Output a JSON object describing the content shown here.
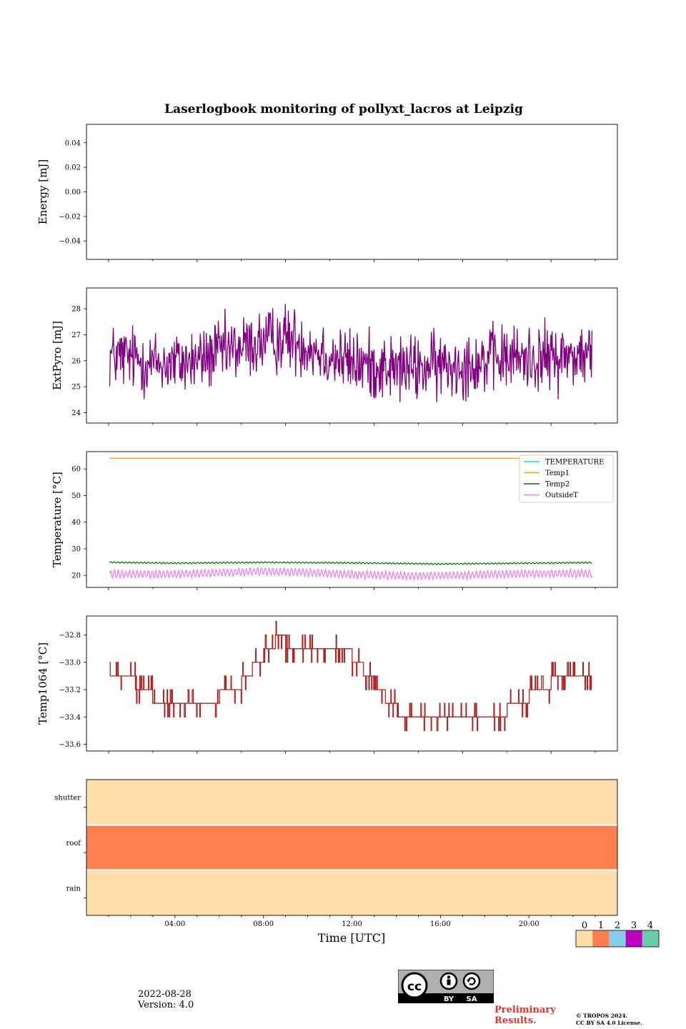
{
  "figure": {
    "title": "Laserlogbook monitoring of pollyxt_lacros at Leipzig",
    "xlabel": "Time [UTC]",
    "xticks": [
      "04:00",
      "08:00",
      "12:00",
      "16:00",
      "20:00"
    ]
  },
  "footer": {
    "date": "2022-08-28",
    "version": "Version: 4.0",
    "preliminary": [
      "Preliminary",
      "Results."
    ],
    "copyright": [
      "© TROPOS 2024.",
      "CC BY SA 4.0 License."
    ],
    "license_badge": {
      "icon": "cc-by-sa-icon",
      "labels": [
        "BY",
        "SA"
      ]
    }
  },
  "colors": {
    "energy": "#800080",
    "extpyro": "#800080",
    "TEMPERATURE": "#00e5ee",
    "Temp1": "#ffa500",
    "Temp2": "#008000",
    "OutsideT": "#ee82ee",
    "temp1064": "#b22222",
    "status_0": "#ffdeaa",
    "status_1": "#ff7f50",
    "status_2": "#87ceeb",
    "status_3": "#c000c0",
    "status_4": "#66cdaa"
  },
  "chart_data": [
    {
      "type": "line",
      "ylabel": "Energy [mJ]",
      "ylim": [
        -0.055,
        0.055
      ],
      "yticks": [
        "0.04",
        "0.02",
        "0.00",
        "−0.02",
        "−0.04"
      ],
      "ytick_values": [
        0.04,
        0.02,
        0.0,
        -0.02,
        -0.04
      ],
      "xlim_hours": [
        0,
        24
      ],
      "series": []
    },
    {
      "type": "line",
      "ylabel": "ExtPyro [mJ]",
      "ylim": [
        23.6,
        28.8
      ],
      "yticks": [
        "24",
        "25",
        "26",
        "27",
        "28"
      ],
      "ytick_values": [
        24,
        25,
        26,
        27,
        28
      ],
      "xlim_hours": [
        0,
        24
      ],
      "noise": {
        "start_hour": 1.05,
        "end_hour": 22.85,
        "points": 800
      },
      "series": [
        {
          "x_hours": [
            1,
            2,
            3,
            4,
            5,
            6,
            7,
            8,
            9,
            10,
            11,
            12,
            13,
            14,
            15,
            16,
            17,
            18,
            19,
            20,
            21,
            22,
            23
          ],
          "y_center": [
            26.2,
            26.1,
            25.9,
            25.9,
            26.0,
            26.3,
            26.5,
            26.7,
            26.9,
            26.6,
            26.2,
            25.9,
            25.8,
            25.7,
            25.7,
            25.8,
            25.9,
            26.0,
            26.1,
            26.1,
            26.1,
            26.2,
            26.2
          ],
          "spread": 1.2
        }
      ]
    },
    {
      "type": "line",
      "ylabel": "Temperature [°C]",
      "ylim": [
        15.5,
        66.5
      ],
      "yticks": [
        "20",
        "30",
        "40",
        "50",
        "60"
      ],
      "ytick_values": [
        20,
        30,
        40,
        50,
        60
      ],
      "xlim_hours": [
        0,
        24
      ],
      "legend": {
        "position": "upper right",
        "entries": [
          "TEMPERATURE",
          "Temp1",
          "Temp2",
          "OutsideT"
        ]
      },
      "series": [
        {
          "name": "TEMPERATURE",
          "x_hours": [],
          "values": []
        },
        {
          "name": "Temp1",
          "x_hours": [
            1.05,
            22.85
          ],
          "values": [
            64.0,
            64.0
          ]
        },
        {
          "name": "Temp2",
          "x_hours": [
            1.05,
            4,
            8,
            12,
            16,
            20,
            22.85
          ],
          "values": [
            24.9,
            24.6,
            24.9,
            24.7,
            24.3,
            24.6,
            24.8
          ],
          "oscillation": 0.3
        },
        {
          "name": "OutsideT",
          "x_hours": [
            1.05,
            4,
            8,
            12,
            14,
            16,
            20,
            22.85
          ],
          "values": [
            20.5,
            20.4,
            21.6,
            20.4,
            19.9,
            19.9,
            20.7,
            20.7
          ],
          "oscillation": 1.7
        }
      ]
    },
    {
      "type": "line",
      "ylabel": "Temp1064 [°C]",
      "ylim": [
        -33.65,
        -32.66
      ],
      "yticks": [
        "−32.8",
        "−33.0",
        "−33.2",
        "−33.4",
        "−33.6"
      ],
      "ytick_values": [
        -32.8,
        -33.0,
        -33.2,
        -33.4,
        -33.6
      ],
      "xlim_hours": [
        0,
        24
      ],
      "series": [
        {
          "x_hours": [
            1.05,
            2,
            2.5,
            3,
            3.5,
            4,
            5,
            5.5,
            6,
            7,
            7.5,
            8,
            8.5,
            9,
            10,
            11,
            12,
            12.5,
            13,
            13.5,
            14,
            15,
            16,
            17,
            18,
            19,
            19.5,
            20,
            20.5,
            21,
            22,
            22.85
          ],
          "values": [
            -33.05,
            -33.1,
            -33.2,
            -33.25,
            -33.3,
            -33.35,
            -33.35,
            -33.3,
            -33.25,
            -33.15,
            -33.05,
            -32.95,
            -32.85,
            -32.85,
            -32.95,
            -32.95,
            -32.95,
            -33.05,
            -33.15,
            -33.25,
            -33.35,
            -33.4,
            -33.45,
            -33.45,
            -33.4,
            -33.35,
            -33.3,
            -33.25,
            -33.2,
            -33.15,
            -33.12,
            -33.1
          ],
          "quantization": 0.1
        }
      ]
    },
    {
      "type": "heatmap",
      "rows": [
        "shutter",
        "roof",
        "rain"
      ],
      "row_status": [
        0,
        1,
        0
      ],
      "xlim_hours": [
        0,
        24
      ],
      "colorbar": {
        "ticks": [
          "0",
          "1",
          "2",
          "3",
          "4"
        ]
      }
    }
  ]
}
